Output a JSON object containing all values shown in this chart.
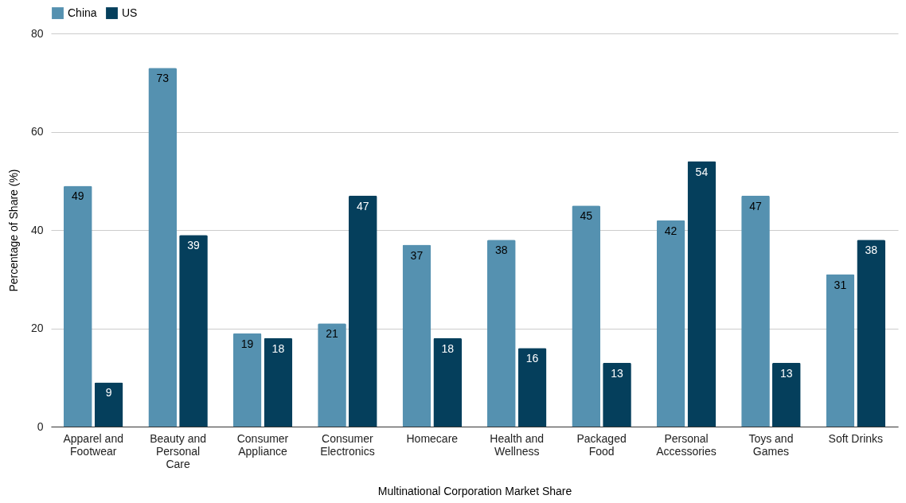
{
  "chart_data": {
    "type": "bar",
    "xlabel": "Multinational Corporation Market Share",
    "ylabel": "Percentage of Share (%)",
    "categories": [
      "Apparel and Footwear",
      "Beauty and Personal Care",
      "Consumer Appliance",
      "Consumer Electronics",
      "Homecare",
      "Health and Wellness",
      "Packaged Food",
      "Personal Accessories",
      "Toys and Games",
      "Soft Drinks"
    ],
    "series": [
      {
        "name": "China",
        "color": "#5591b0",
        "values": [
          49,
          73,
          19,
          21,
          37,
          38,
          45,
          42,
          47,
          31
        ]
      },
      {
        "name": "US",
        "color": "#053f5c",
        "values": [
          9,
          39,
          18,
          47,
          18,
          16,
          13,
          54,
          13,
          38
        ]
      }
    ],
    "ylim": [
      0,
      80
    ],
    "yticks": [
      0,
      20,
      40,
      60,
      80
    ],
    "grid": "y",
    "legend": "top",
    "data_labels": true
  }
}
